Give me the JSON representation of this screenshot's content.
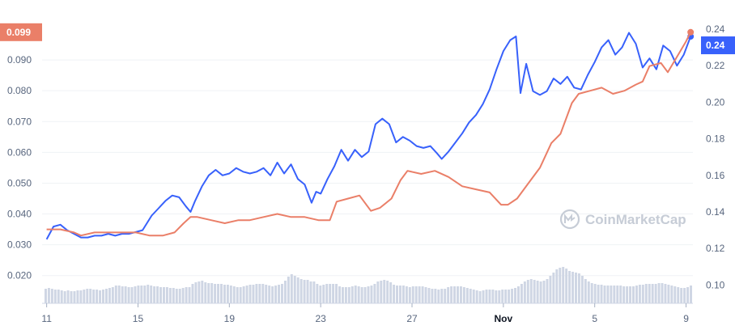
{
  "watermark": {
    "text": "CoinMarketCap",
    "icon": "coinmarketcap-logo-icon"
  },
  "chart_data": {
    "type": "line",
    "grid": true,
    "legend": "none",
    "x_ticks": [
      {
        "label": "11",
        "day": 0,
        "bold": false
      },
      {
        "label": "15",
        "day": 4,
        "bold": false
      },
      {
        "label": "19",
        "day": 8,
        "bold": false
      },
      {
        "label": "23",
        "day": 12,
        "bold": false
      },
      {
        "label": "27",
        "day": 16,
        "bold": false
      },
      {
        "label": "Nov",
        "day": 20,
        "bold": true
      },
      {
        "label": "5",
        "day": 24,
        "bold": false
      },
      {
        "label": "9",
        "day": 28,
        "bold": false
      }
    ],
    "x_range": [
      -0.2,
      28.3
    ],
    "left_axis": {
      "ticks": [
        "0.020",
        "0.030",
        "0.040",
        "0.050",
        "0.060",
        "0.070",
        "0.080",
        "0.090"
      ],
      "tick_values": [
        0.02,
        0.03,
        0.04,
        0.05,
        0.06,
        0.07,
        0.08,
        0.09
      ],
      "range": [
        0.011,
        0.1
      ],
      "current_value_label": "0.099",
      "color": "#ea7f68"
    },
    "right_axis": {
      "ticks": [
        "0.10",
        "0.12",
        "0.14",
        "0.16",
        "0.18",
        "0.20",
        "0.22",
        "0.24"
      ],
      "tick_values": [
        0.1,
        0.12,
        0.14,
        0.16,
        0.18,
        0.2,
        0.22,
        0.24
      ],
      "range": [
        0.09,
        0.24
      ],
      "current_value_label": "0.24",
      "color": "#3861fb"
    },
    "series": [
      {
        "axis": "right",
        "color": "#3861fb",
        "points": [
          [
            0.0,
            0.125
          ],
          [
            0.3,
            0.132
          ],
          [
            0.6,
            0.133
          ],
          [
            0.9,
            0.13
          ],
          [
            1.2,
            0.128
          ],
          [
            1.5,
            0.126
          ],
          [
            1.8,
            0.126
          ],
          [
            2.1,
            0.127
          ],
          [
            2.4,
            0.127
          ],
          [
            2.7,
            0.128
          ],
          [
            3.0,
            0.127
          ],
          [
            3.3,
            0.128
          ],
          [
            3.6,
            0.128
          ],
          [
            3.9,
            0.129
          ],
          [
            4.2,
            0.13
          ],
          [
            4.6,
            0.138
          ],
          [
            4.9,
            0.142
          ],
          [
            5.2,
            0.146
          ],
          [
            5.5,
            0.149
          ],
          [
            5.8,
            0.148
          ],
          [
            6.1,
            0.143
          ],
          [
            6.3,
            0.14
          ],
          [
            6.5,
            0.146
          ],
          [
            6.8,
            0.154
          ],
          [
            7.1,
            0.16
          ],
          [
            7.4,
            0.163
          ],
          [
            7.7,
            0.16
          ],
          [
            8.0,
            0.161
          ],
          [
            8.3,
            0.164
          ],
          [
            8.6,
            0.162
          ],
          [
            8.9,
            0.161
          ],
          [
            9.2,
            0.162
          ],
          [
            9.5,
            0.164
          ],
          [
            9.8,
            0.16
          ],
          [
            10.1,
            0.167
          ],
          [
            10.4,
            0.161
          ],
          [
            10.7,
            0.166
          ],
          [
            11.0,
            0.158
          ],
          [
            11.3,
            0.155
          ],
          [
            11.6,
            0.145
          ],
          [
            11.8,
            0.151
          ],
          [
            12.0,
            0.15
          ],
          [
            12.3,
            0.158
          ],
          [
            12.6,
            0.165
          ],
          [
            12.9,
            0.174
          ],
          [
            13.2,
            0.168
          ],
          [
            13.5,
            0.174
          ],
          [
            13.8,
            0.17
          ],
          [
            14.1,
            0.173
          ],
          [
            14.4,
            0.188
          ],
          [
            14.7,
            0.191
          ],
          [
            15.0,
            0.188
          ],
          [
            15.3,
            0.178
          ],
          [
            15.6,
            0.181
          ],
          [
            15.9,
            0.179
          ],
          [
            16.2,
            0.176
          ],
          [
            16.5,
            0.175
          ],
          [
            16.8,
            0.176
          ],
          [
            17.1,
            0.172
          ],
          [
            17.3,
            0.169
          ],
          [
            17.6,
            0.173
          ],
          [
            17.9,
            0.178
          ],
          [
            18.2,
            0.183
          ],
          [
            18.5,
            0.189
          ],
          [
            18.8,
            0.193
          ],
          [
            19.1,
            0.199
          ],
          [
            19.4,
            0.207
          ],
          [
            19.7,
            0.218
          ],
          [
            20.0,
            0.228
          ],
          [
            20.3,
            0.234
          ],
          [
            20.55,
            0.236
          ],
          [
            20.75,
            0.205
          ],
          [
            21.0,
            0.221
          ],
          [
            21.3,
            0.206
          ],
          [
            21.6,
            0.204
          ],
          [
            21.9,
            0.206
          ],
          [
            22.2,
            0.213
          ],
          [
            22.5,
            0.21
          ],
          [
            22.8,
            0.214
          ],
          [
            23.1,
            0.208
          ],
          [
            23.4,
            0.207
          ],
          [
            23.7,
            0.215
          ],
          [
            24.0,
            0.222
          ],
          [
            24.3,
            0.23
          ],
          [
            24.6,
            0.234
          ],
          [
            24.9,
            0.226
          ],
          [
            25.2,
            0.23
          ],
          [
            25.5,
            0.238
          ],
          [
            25.8,
            0.232
          ],
          [
            26.1,
            0.219
          ],
          [
            26.4,
            0.224
          ],
          [
            26.7,
            0.218
          ],
          [
            27.0,
            0.231
          ],
          [
            27.3,
            0.228
          ],
          [
            27.6,
            0.22
          ],
          [
            27.9,
            0.226
          ],
          [
            28.2,
            0.236
          ]
        ]
      },
      {
        "axis": "left",
        "color": "#ea7f68",
        "points": [
          [
            0.0,
            0.035
          ],
          [
            0.6,
            0.035
          ],
          [
            1.2,
            0.034
          ],
          [
            1.5,
            0.033
          ],
          [
            2.1,
            0.034
          ],
          [
            2.7,
            0.034
          ],
          [
            3.3,
            0.034
          ],
          [
            3.9,
            0.034
          ],
          [
            4.5,
            0.033
          ],
          [
            5.1,
            0.033
          ],
          [
            5.6,
            0.034
          ],
          [
            6.0,
            0.037
          ],
          [
            6.3,
            0.039
          ],
          [
            6.6,
            0.039
          ],
          [
            7.2,
            0.038
          ],
          [
            7.8,
            0.037
          ],
          [
            8.4,
            0.038
          ],
          [
            8.9,
            0.038
          ],
          [
            9.5,
            0.039
          ],
          [
            10.1,
            0.04
          ],
          [
            10.7,
            0.039
          ],
          [
            11.3,
            0.039
          ],
          [
            11.9,
            0.038
          ],
          [
            12.4,
            0.038
          ],
          [
            12.7,
            0.044
          ],
          [
            13.2,
            0.045
          ],
          [
            13.7,
            0.046
          ],
          [
            14.2,
            0.041
          ],
          [
            14.6,
            0.042
          ],
          [
            15.1,
            0.045
          ],
          [
            15.5,
            0.051
          ],
          [
            15.8,
            0.054
          ],
          [
            16.4,
            0.053
          ],
          [
            17.0,
            0.054
          ],
          [
            17.6,
            0.052
          ],
          [
            18.2,
            0.049
          ],
          [
            18.8,
            0.048
          ],
          [
            19.4,
            0.047
          ],
          [
            19.9,
            0.043
          ],
          [
            20.2,
            0.043
          ],
          [
            20.6,
            0.045
          ],
          [
            21.1,
            0.05
          ],
          [
            21.6,
            0.055
          ],
          [
            22.1,
            0.063
          ],
          [
            22.5,
            0.066
          ],
          [
            23.0,
            0.076
          ],
          [
            23.3,
            0.079
          ],
          [
            23.8,
            0.08
          ],
          [
            24.3,
            0.081
          ],
          [
            24.8,
            0.079
          ],
          [
            25.3,
            0.08
          ],
          [
            25.8,
            0.082
          ],
          [
            26.1,
            0.083
          ],
          [
            26.4,
            0.088
          ],
          [
            26.9,
            0.089
          ],
          [
            27.2,
            0.086
          ],
          [
            27.6,
            0.091
          ],
          [
            28.0,
            0.096
          ],
          [
            28.2,
            0.099
          ]
        ]
      },
      {
        "type": "volume-bars",
        "color": "#cfd6e4",
        "values": [
          18,
          19,
          18,
          17,
          17,
          16,
          15,
          16,
          15,
          15,
          16,
          16,
          17,
          18,
          18,
          17,
          17,
          16,
          17,
          18,
          19,
          20,
          22,
          22,
          21,
          21,
          20,
          20,
          21,
          22,
          22,
          22,
          23,
          22,
          21,
          21,
          20,
          20,
          20,
          19,
          19,
          18,
          18,
          19,
          20,
          20,
          24,
          26,
          27,
          28,
          26,
          25,
          25,
          24,
          24,
          24,
          23,
          23,
          22,
          21,
          20,
          20,
          21,
          22,
          23,
          23,
          24,
          24,
          24,
          23,
          22,
          21,
          22,
          23,
          24,
          28,
          33,
          36,
          34,
          32,
          30,
          29,
          29,
          27,
          27,
          24,
          22,
          23,
          24,
          24,
          24,
          24,
          21,
          20,
          20,
          20,
          21,
          22,
          21,
          20,
          20,
          21,
          22,
          24,
          27,
          28,
          29,
          28,
          26,
          23,
          22,
          22,
          22,
          21,
          20,
          21,
          21,
          21,
          21,
          20,
          19,
          18,
          18,
          17,
          18,
          18,
          20,
          21,
          21,
          21,
          21,
          20,
          19,
          18,
          17,
          16,
          15,
          16,
          17,
          17,
          17,
          16,
          16,
          17,
          17,
          17,
          18,
          19,
          21,
          24,
          27,
          29,
          30,
          29,
          28,
          27,
          28,
          30,
          34,
          38,
          42,
          44,
          45,
          43,
          40,
          39,
          38,
          37,
          34,
          30,
          27,
          25,
          24,
          23,
          23,
          22,
          22,
          22,
          22,
          22,
          22,
          21,
          21,
          21,
          21,
          22,
          23,
          23,
          24,
          24,
          24,
          24,
          25,
          25,
          24,
          23,
          22,
          21,
          20,
          19,
          19,
          20,
          22
        ]
      }
    ]
  }
}
